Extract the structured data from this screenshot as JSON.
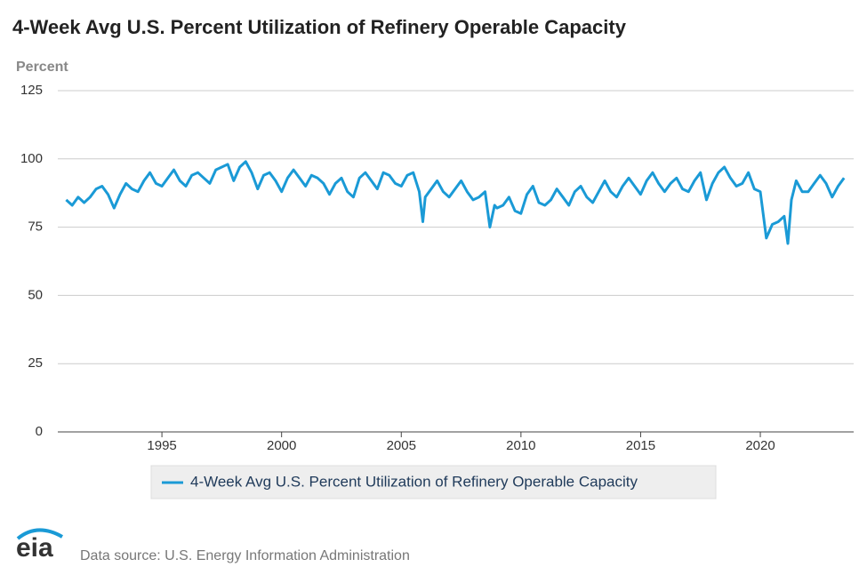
{
  "chart_data": {
    "type": "line",
    "title": "4-Week Avg U.S. Percent Utilization of Refinery Operable Capacity",
    "y_label": "Percent",
    "source": "Data source: U.S. Energy Information Administration",
    "logo": "eia",
    "x": [
      1991.0,
      1991.25,
      1991.5,
      1991.75,
      1992.0,
      1992.25,
      1992.5,
      1992.75,
      1993.0,
      1993.25,
      1993.5,
      1993.75,
      1994.0,
      1994.25,
      1994.5,
      1994.75,
      1995.0,
      1995.25,
      1995.5,
      1995.75,
      1996.0,
      1996.25,
      1996.5,
      1996.75,
      1997.0,
      1997.25,
      1997.5,
      1997.75,
      1998.0,
      1998.25,
      1998.5,
      1998.75,
      1999.0,
      1999.25,
      1999.5,
      1999.75,
      2000.0,
      2000.25,
      2000.5,
      2000.75,
      2001.0,
      2001.25,
      2001.5,
      2001.75,
      2002.0,
      2002.25,
      2002.5,
      2002.75,
      2003.0,
      2003.25,
      2003.5,
      2003.75,
      2004.0,
      2004.25,
      2004.5,
      2004.75,
      2005.0,
      2005.25,
      2005.5,
      2005.75,
      2005.9,
      2006.0,
      2006.25,
      2006.5,
      2006.75,
      2007.0,
      2007.25,
      2007.5,
      2007.75,
      2008.0,
      2008.25,
      2008.5,
      2008.7,
      2008.9,
      2009.0,
      2009.25,
      2009.5,
      2009.75,
      2010.0,
      2010.25,
      2010.5,
      2010.75,
      2011.0,
      2011.25,
      2011.5,
      2011.75,
      2012.0,
      2012.25,
      2012.5,
      2012.75,
      2013.0,
      2013.25,
      2013.5,
      2013.75,
      2014.0,
      2014.25,
      2014.5,
      2014.75,
      2015.0,
      2015.25,
      2015.5,
      2015.75,
      2016.0,
      2016.25,
      2016.5,
      2016.75,
      2017.0,
      2017.25,
      2017.5,
      2017.75,
      2018.0,
      2018.25,
      2018.5,
      2018.75,
      2019.0,
      2019.25,
      2019.5,
      2019.75,
      2020.0,
      2020.25,
      2020.5,
      2020.75,
      2021.0,
      2021.15,
      2021.3,
      2021.5,
      2021.75,
      2022.0,
      2022.25,
      2022.5,
      2022.75,
      2023.0,
      2023.25,
      2023.5
    ],
    "series": [
      {
        "name": "4-Week Avg U.S. Percent Utilization of Refinery Operable Capacity",
        "color": "#1a9ad6",
        "values": [
          85,
          83,
          86,
          84,
          86,
          89,
          90,
          87,
          82,
          87,
          91,
          89,
          88,
          92,
          95,
          91,
          90,
          93,
          96,
          92,
          90,
          94,
          95,
          93,
          91,
          96,
          97,
          98,
          92,
          97,
          99,
          95,
          89,
          94,
          95,
          92,
          88,
          93,
          96,
          93,
          90,
          94,
          93,
          91,
          87,
          91,
          93,
          88,
          86,
          93,
          95,
          92,
          89,
          95,
          94,
          91,
          90,
          94,
          95,
          88,
          77,
          86,
          89,
          92,
          88,
          86,
          89,
          92,
          88,
          85,
          86,
          88,
          75,
          83,
          82,
          83,
          86,
          81,
          80,
          87,
          90,
          84,
          83,
          85,
          89,
          86,
          83,
          88,
          90,
          86,
          84,
          88,
          92,
          88,
          86,
          90,
          93,
          90,
          87,
          92,
          95,
          91,
          88,
          91,
          93,
          89,
          88,
          92,
          95,
          85,
          91,
          95,
          97,
          93,
          90,
          91,
          95,
          89,
          88,
          71,
          76,
          77,
          79,
          69,
          85,
          92,
          88,
          88,
          91,
          94,
          91,
          86,
          90,
          93
        ]
      }
    ],
    "xlim": [
      1990.65,
      2023.9
    ],
    "ylim": [
      0,
      125
    ],
    "xticks": [
      1995,
      2000,
      2005,
      2010,
      2015,
      2020
    ],
    "yticks": [
      0,
      25,
      50,
      75,
      100,
      125
    ],
    "grid": true
  }
}
